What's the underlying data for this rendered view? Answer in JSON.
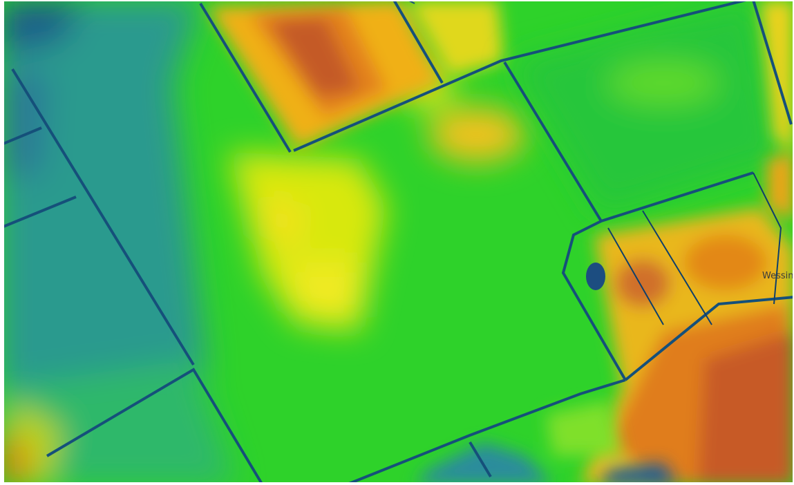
{
  "map": {
    "place_label": "Wessin"
  }
}
